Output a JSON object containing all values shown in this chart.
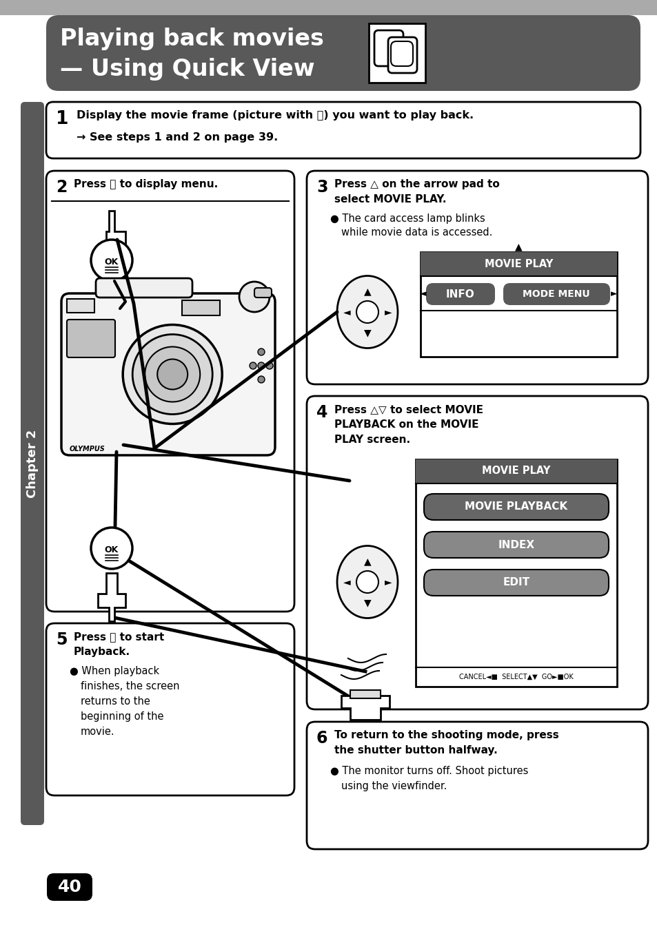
{
  "title_line1": "Playing back movies",
  "title_line2": "— Using Quick View",
  "title_bg": "#595959",
  "title_text_color": "#ffffff",
  "page_bg": "#ffffff",
  "chapter_bg": "#595959",
  "chapter_text": "Chapter 2",
  "page_number": "40",
  "dark_btn": "#595959",
  "green_btn": "#888888",
  "light_gray": "#f2f2f2",
  "mid_gray": "#bbbbbb",
  "top_gray": "#aaaaaa"
}
